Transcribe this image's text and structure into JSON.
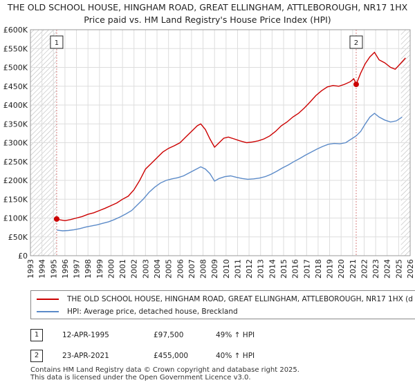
{
  "title_line1": "THE OLD SCHOOL HOUSE, HINGHAM ROAD, GREAT ELLINGHAM, ATTLEBOROUGH, NR17 1HX",
  "title_line2": "Price paid vs. HM Land Registry's House Price Index (HPI)",
  "colors": {
    "property": "#cc0000",
    "hpi": "#5b8ac8",
    "hatch": "#bbbbbb",
    "grid": "#dddddd",
    "marker_line": "#d98080"
  },
  "chart_data": {
    "type": "line",
    "x_range": [
      1993,
      2026
    ],
    "ylim": [
      0,
      600000
    ],
    "y_ticks": [
      0,
      50000,
      100000,
      150000,
      200000,
      250000,
      300000,
      350000,
      400000,
      450000,
      500000,
      550000,
      600000
    ],
    "y_tick_labels": [
      "£0",
      "£50K",
      "£100K",
      "£150K",
      "£200K",
      "£250K",
      "£300K",
      "£350K",
      "£400K",
      "£450K",
      "£500K",
      "£550K",
      "£600K"
    ],
    "x_ticks": [
      1993,
      1994,
      1995,
      1996,
      1997,
      1998,
      1999,
      2000,
      2001,
      2002,
      2003,
      2004,
      2005,
      2006,
      2007,
      2008,
      2009,
      2010,
      2011,
      2012,
      2013,
      2014,
      2015,
      2016,
      2017,
      2018,
      2019,
      2020,
      2021,
      2022,
      2023,
      2024,
      2025,
      2026
    ],
    "x_tick_labels": [
      "1993",
      "1994",
      "1995",
      "1996",
      "1997",
      "1998",
      "1999",
      "2000",
      "2001",
      "2002",
      "2003",
      "2004",
      "2005",
      "2006",
      "2007",
      "2008",
      "2009",
      "2010",
      "2011",
      "2012",
      "2013",
      "2014",
      "2015",
      "2016",
      "2017",
      "2018",
      "2019",
      "2020",
      "2021",
      "2022",
      "2023",
      "2024",
      "2025",
      "2026"
    ],
    "hatched_before": 1995.28,
    "hatched_after": 2025.2,
    "series": [
      {
        "name": "THE OLD SCHOOL HOUSE, HINGHAM ROAD, GREAT ELLINGHAM, ATTLEBOROUGH, NR17 1HX (d",
        "color": "#cc0000",
        "points": [
          [
            1995.28,
            97500
          ],
          [
            1995.6,
            95000
          ],
          [
            1996,
            93000
          ],
          [
            1996.5,
            96000
          ],
          [
            1997,
            100000
          ],
          [
            1997.5,
            104000
          ],
          [
            1998,
            110000
          ],
          [
            1998.5,
            114000
          ],
          [
            1999,
            120000
          ],
          [
            1999.5,
            126000
          ],
          [
            2000,
            133000
          ],
          [
            2000.5,
            140000
          ],
          [
            2001,
            150000
          ],
          [
            2001.5,
            158000
          ],
          [
            2002,
            175000
          ],
          [
            2002.5,
            200000
          ],
          [
            2003,
            230000
          ],
          [
            2003.5,
            245000
          ],
          [
            2004,
            260000
          ],
          [
            2004.5,
            275000
          ],
          [
            2005,
            285000
          ],
          [
            2005.5,
            292000
          ],
          [
            2006,
            300000
          ],
          [
            2006.5,
            315000
          ],
          [
            2007,
            330000
          ],
          [
            2007.5,
            345000
          ],
          [
            2007.8,
            350000
          ],
          [
            2008.2,
            335000
          ],
          [
            2008.6,
            310000
          ],
          [
            2009,
            288000
          ],
          [
            2009.4,
            300000
          ],
          [
            2009.8,
            312000
          ],
          [
            2010.2,
            315000
          ],
          [
            2010.7,
            310000
          ],
          [
            2011.2,
            305000
          ],
          [
            2011.8,
            300000
          ],
          [
            2012.3,
            302000
          ],
          [
            2012.8,
            305000
          ],
          [
            2013.3,
            310000
          ],
          [
            2013.8,
            318000
          ],
          [
            2014.3,
            330000
          ],
          [
            2014.8,
            345000
          ],
          [
            2015.3,
            355000
          ],
          [
            2015.8,
            368000
          ],
          [
            2016.3,
            378000
          ],
          [
            2016.8,
            392000
          ],
          [
            2017.3,
            408000
          ],
          [
            2017.8,
            425000
          ],
          [
            2018.3,
            438000
          ],
          [
            2018.8,
            448000
          ],
          [
            2019.3,
            452000
          ],
          [
            2019.8,
            450000
          ],
          [
            2020.3,
            455000
          ],
          [
            2020.8,
            462000
          ],
          [
            2021.1,
            470000
          ],
          [
            2021.31,
            455000
          ],
          [
            2021.7,
            485000
          ],
          [
            2022.1,
            510000
          ],
          [
            2022.5,
            528000
          ],
          [
            2022.9,
            540000
          ],
          [
            2023.3,
            520000
          ],
          [
            2023.8,
            512000
          ],
          [
            2024.3,
            500000
          ],
          [
            2024.7,
            495000
          ],
          [
            2025.1,
            508000
          ],
          [
            2025.6,
            525000
          ]
        ]
      },
      {
        "name": "HPI: Average price, detached house, Breckland",
        "color": "#5b8ac8",
        "points": [
          [
            1995.3,
            68000
          ],
          [
            1995.8,
            66000
          ],
          [
            1996.3,
            67000
          ],
          [
            1996.8,
            69000
          ],
          [
            1997.3,
            72000
          ],
          [
            1997.8,
            76000
          ],
          [
            1998.3,
            79000
          ],
          [
            1998.8,
            82000
          ],
          [
            1999.3,
            86000
          ],
          [
            1999.8,
            90000
          ],
          [
            2000.3,
            96000
          ],
          [
            2000.8,
            103000
          ],
          [
            2001.3,
            111000
          ],
          [
            2001.8,
            120000
          ],
          [
            2002.3,
            135000
          ],
          [
            2002.8,
            150000
          ],
          [
            2003.3,
            168000
          ],
          [
            2003.8,
            182000
          ],
          [
            2004.3,
            193000
          ],
          [
            2004.8,
            200000
          ],
          [
            2005.3,
            204000
          ],
          [
            2005.8,
            207000
          ],
          [
            2006.3,
            212000
          ],
          [
            2006.8,
            220000
          ],
          [
            2007.3,
            228000
          ],
          [
            2007.8,
            236000
          ],
          [
            2008.2,
            230000
          ],
          [
            2008.6,
            218000
          ],
          [
            2009,
            198000
          ],
          [
            2009.4,
            205000
          ],
          [
            2009.9,
            210000
          ],
          [
            2010.4,
            212000
          ],
          [
            2010.9,
            208000
          ],
          [
            2011.4,
            205000
          ],
          [
            2011.9,
            203000
          ],
          [
            2012.4,
            204000
          ],
          [
            2012.9,
            206000
          ],
          [
            2013.4,
            210000
          ],
          [
            2013.9,
            216000
          ],
          [
            2014.4,
            224000
          ],
          [
            2014.9,
            233000
          ],
          [
            2015.4,
            241000
          ],
          [
            2015.9,
            250000
          ],
          [
            2016.4,
            258000
          ],
          [
            2016.9,
            267000
          ],
          [
            2017.4,
            275000
          ],
          [
            2017.9,
            283000
          ],
          [
            2018.4,
            290000
          ],
          [
            2018.9,
            296000
          ],
          [
            2019.4,
            298000
          ],
          [
            2019.9,
            297000
          ],
          [
            2020.4,
            300000
          ],
          [
            2020.9,
            310000
          ],
          [
            2021.3,
            318000
          ],
          [
            2021.7,
            330000
          ],
          [
            2022.1,
            350000
          ],
          [
            2022.5,
            368000
          ],
          [
            2022.9,
            378000
          ],
          [
            2023.3,
            368000
          ],
          [
            2023.8,
            360000
          ],
          [
            2024.3,
            355000
          ],
          [
            2024.8,
            358000
          ],
          [
            2025.3,
            368000
          ]
        ]
      }
    ],
    "annotations": [
      {
        "label": "1",
        "x": 1995.28,
        "y": 97500
      },
      {
        "label": "2",
        "x": 2021.31,
        "y": 455000
      }
    ]
  },
  "legend": {
    "property_label": "THE OLD SCHOOL HOUSE, HINGHAM ROAD, GREAT ELLINGHAM, ATTLEBOROUGH, NR17 1HX (d",
    "hpi_label": "HPI: Average price, detached house, Breckland"
  },
  "transactions": [
    {
      "num": "1",
      "date": "12-APR-1995",
      "price": "£97,500",
      "hpi": "49% ↑ HPI"
    },
    {
      "num": "2",
      "date": "23-APR-2021",
      "price": "£455,000",
      "hpi": "40% ↑ HPI"
    }
  ],
  "footer_line1": "Contains HM Land Registry data © Crown copyright and database right 2025.",
  "footer_line2": "This data is licensed under the Open Government Licence v3.0."
}
